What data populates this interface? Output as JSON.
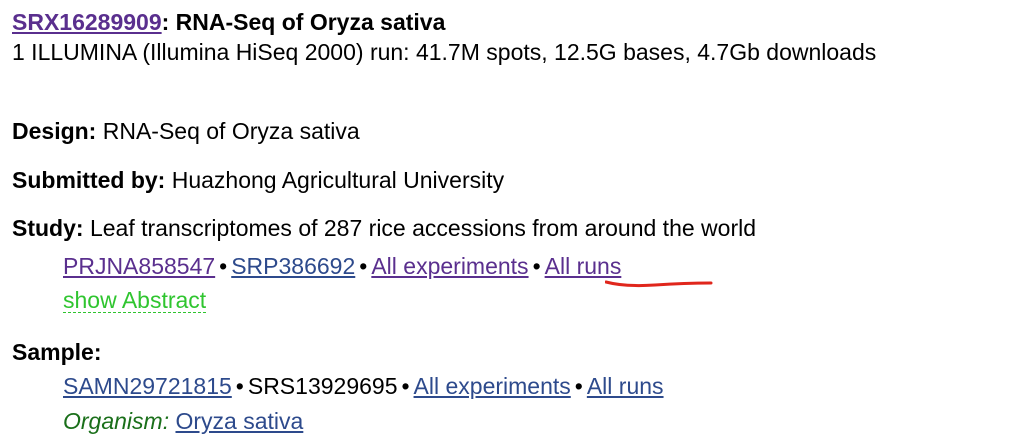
{
  "header": {
    "accession": "SRX16289909",
    "title_suffix": ": RNA-Seq of Oryza sativa",
    "summary": "1 ILLUMINA (Illumina HiSeq 2000) run: 41.7M spots, 12.5G bases, 4.7Gb downloads"
  },
  "design": {
    "label": "Design:",
    "value": " RNA-Seq of Oryza sativa"
  },
  "submitted": {
    "label": "Submitted by:",
    "value": " Huazhong Agricultural University"
  },
  "study": {
    "label": "Study:",
    "value": " Leaf transcriptomes of 287 rice accessions from around the world",
    "links": {
      "bioproject": "PRJNA858547",
      "srp": "SRP386692",
      "all_experiments": "All experiments",
      "all_runs": "All runs"
    },
    "show_abstract": "show Abstract"
  },
  "sample": {
    "label": "Sample:",
    "biosample": "SAMN29721815",
    "srs": "SRS13929695",
    "all_experiments": "All experiments",
    "all_runs": "All runs",
    "organism_label": "Organism:",
    "organism_value": "Oryza sativa"
  },
  "separator": "•",
  "colors": {
    "visited_link": "#5a2f8e",
    "link": "#2d4a8c",
    "toggle": "#2fc52f",
    "organism_label": "#1a6f1a",
    "annotation": "#e0261c"
  }
}
